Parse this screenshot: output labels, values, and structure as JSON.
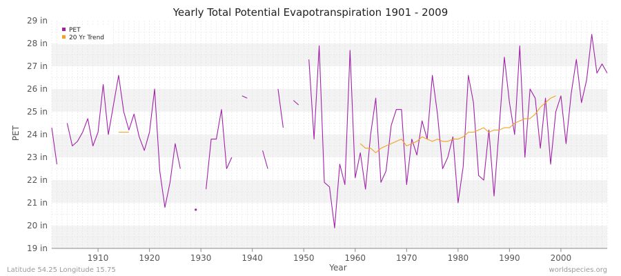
{
  "chart_data": {
    "type": "line",
    "title": "Yearly Total Potential Evapotranspiration 1901 - 2009",
    "xlabel": "Year",
    "ylabel": "PET",
    "xlim": [
      1901,
      2009
    ],
    "ylim": [
      19,
      29
    ],
    "x_ticks": [
      1910,
      1920,
      1930,
      1940,
      1950,
      1960,
      1970,
      1980,
      1990,
      2000
    ],
    "y_ticks": [
      {
        "value": 19,
        "label": "19 in"
      },
      {
        "value": 20,
        "label": "20 in"
      },
      {
        "value": 21,
        "label": "21 in"
      },
      {
        "value": 22,
        "label": "22 in"
      },
      {
        "value": 23,
        "label": "23 in"
      },
      {
        "value": 24,
        "label": "24 in"
      },
      {
        "value": 25,
        "label": "25 in"
      },
      {
        "value": 26,
        "label": "26 in"
      },
      {
        "value": 27,
        "label": "27 in"
      },
      {
        "value": 28,
        "label": "28 in"
      },
      {
        "value": 29,
        "label": "29 in"
      }
    ],
    "legend": {
      "position": "top-left",
      "entries": [
        {
          "name": "PET",
          "color": "#a020a8"
        },
        {
          "name": "20 Yr Trend",
          "color": "#f5a020"
        }
      ]
    },
    "series": [
      {
        "name": "PET",
        "color": "#a020a8",
        "points": [
          [
            1901,
            24.3
          ],
          [
            1902,
            22.7
          ],
          [
            1903,
            null
          ],
          [
            1904,
            24.5
          ],
          [
            1905,
            23.5
          ],
          [
            1906,
            23.7
          ],
          [
            1907,
            24.1
          ],
          [
            1908,
            24.7
          ],
          [
            1909,
            23.5
          ],
          [
            1910,
            24.1
          ],
          [
            1911,
            26.2
          ],
          [
            1912,
            24.0
          ],
          [
            1913,
            25.3
          ],
          [
            1914,
            26.6
          ],
          [
            1915,
            25.0
          ],
          [
            1916,
            24.2
          ],
          [
            1917,
            24.9
          ],
          [
            1918,
            23.9
          ],
          [
            1919,
            23.3
          ],
          [
            1920,
            24.1
          ],
          [
            1921,
            26.0
          ],
          [
            1922,
            22.4
          ],
          [
            1923,
            20.8
          ],
          [
            1924,
            21.9
          ],
          [
            1925,
            23.6
          ],
          [
            1926,
            22.5
          ],
          [
            1927,
            null
          ],
          [
            1928,
            null
          ],
          [
            1929,
            20.7
          ],
          [
            1930,
            null
          ],
          [
            1931,
            21.6
          ],
          [
            1932,
            23.8
          ],
          [
            1933,
            23.8
          ],
          [
            1934,
            25.1
          ],
          [
            1935,
            22.5
          ],
          [
            1936,
            23.0
          ],
          [
            1937,
            null
          ],
          [
            1938,
            25.7
          ],
          [
            1939,
            25.6
          ],
          [
            1940,
            null
          ],
          [
            1941,
            null
          ],
          [
            1942,
            23.3
          ],
          [
            1943,
            22.5
          ],
          [
            1944,
            null
          ],
          [
            1945,
            26.0
          ],
          [
            1946,
            24.3
          ],
          [
            1947,
            null
          ],
          [
            1948,
            25.5
          ],
          [
            1949,
            25.3
          ],
          [
            1950,
            null
          ],
          [
            1951,
            27.3
          ],
          [
            1952,
            23.8
          ],
          [
            1953,
            27.9
          ],
          [
            1954,
            21.9
          ],
          [
            1955,
            21.7
          ],
          [
            1956,
            19.9
          ],
          [
            1957,
            22.7
          ],
          [
            1958,
            21.8
          ],
          [
            1959,
            27.7
          ],
          [
            1960,
            22.1
          ],
          [
            1961,
            23.2
          ],
          [
            1962,
            21.6
          ],
          [
            1963,
            24.0
          ],
          [
            1964,
            25.6
          ],
          [
            1965,
            21.9
          ],
          [
            1966,
            22.4
          ],
          [
            1967,
            24.4
          ],
          [
            1968,
            25.1
          ],
          [
            1969,
            25.1
          ],
          [
            1970,
            21.8
          ],
          [
            1971,
            23.8
          ],
          [
            1972,
            23.1
          ],
          [
            1973,
            24.6
          ],
          [
            1974,
            23.8
          ],
          [
            1975,
            26.6
          ],
          [
            1976,
            24.9
          ],
          [
            1977,
            22.5
          ],
          [
            1978,
            23.0
          ],
          [
            1979,
            23.9
          ],
          [
            1980,
            21.0
          ],
          [
            1981,
            22.6
          ],
          [
            1982,
            26.6
          ],
          [
            1983,
            25.4
          ],
          [
            1984,
            22.2
          ],
          [
            1985,
            22.0
          ],
          [
            1986,
            24.2
          ],
          [
            1987,
            21.3
          ],
          [
            1988,
            24.3
          ],
          [
            1989,
            27.4
          ],
          [
            1990,
            25.4
          ],
          [
            1991,
            24.0
          ],
          [
            1992,
            27.9
          ],
          [
            1993,
            23.0
          ],
          [
            1994,
            26.0
          ],
          [
            1995,
            25.6
          ],
          [
            1996,
            23.4
          ],
          [
            1997,
            25.6
          ],
          [
            1998,
            22.7
          ],
          [
            1999,
            25.0
          ],
          [
            2000,
            25.7
          ],
          [
            2001,
            23.6
          ],
          [
            2002,
            25.8
          ],
          [
            2003,
            27.3
          ],
          [
            2004,
            25.4
          ],
          [
            2005,
            26.4
          ],
          [
            2006,
            28.4
          ],
          [
            2007,
            26.7
          ],
          [
            2008,
            27.1
          ],
          [
            2009,
            26.7
          ]
        ]
      },
      {
        "name": "20 Yr Trend",
        "color": "#f5a020",
        "points": [
          [
            1914,
            24.1
          ],
          [
            1915,
            24.1
          ],
          [
            1916,
            24.1
          ],
          [
            1917,
            null
          ],
          [
            1961,
            23.6
          ],
          [
            1962,
            23.4
          ],
          [
            1963,
            23.4
          ],
          [
            1964,
            23.2
          ],
          [
            1965,
            23.4
          ],
          [
            1966,
            23.5
          ],
          [
            1967,
            23.6
          ],
          [
            1968,
            23.7
          ],
          [
            1969,
            23.8
          ],
          [
            1970,
            23.5
          ],
          [
            1971,
            23.6
          ],
          [
            1972,
            23.7
          ],
          [
            1973,
            23.9
          ],
          [
            1974,
            23.8
          ],
          [
            1975,
            23.7
          ],
          [
            1976,
            23.8
          ],
          [
            1977,
            23.7
          ],
          [
            1978,
            23.7
          ],
          [
            1979,
            23.8
          ],
          [
            1980,
            23.8
          ],
          [
            1981,
            23.9
          ],
          [
            1982,
            24.1
          ],
          [
            1983,
            24.1
          ],
          [
            1984,
            24.2
          ],
          [
            1985,
            24.3
          ],
          [
            1986,
            24.1
          ],
          [
            1987,
            24.2
          ],
          [
            1988,
            24.2
          ],
          [
            1989,
            24.3
          ],
          [
            1990,
            24.3
          ],
          [
            1991,
            24.5
          ],
          [
            1992,
            24.6
          ],
          [
            1993,
            24.7
          ],
          [
            1994,
            24.7
          ],
          [
            1995,
            24.9
          ],
          [
            1996,
            25.2
          ],
          [
            1997,
            25.4
          ],
          [
            1998,
            25.6
          ],
          [
            1999,
            25.7
          ]
        ]
      }
    ]
  },
  "footer": {
    "location": "Latitude 54.25 Longitude 15.75",
    "source": "worldspecies.org"
  }
}
